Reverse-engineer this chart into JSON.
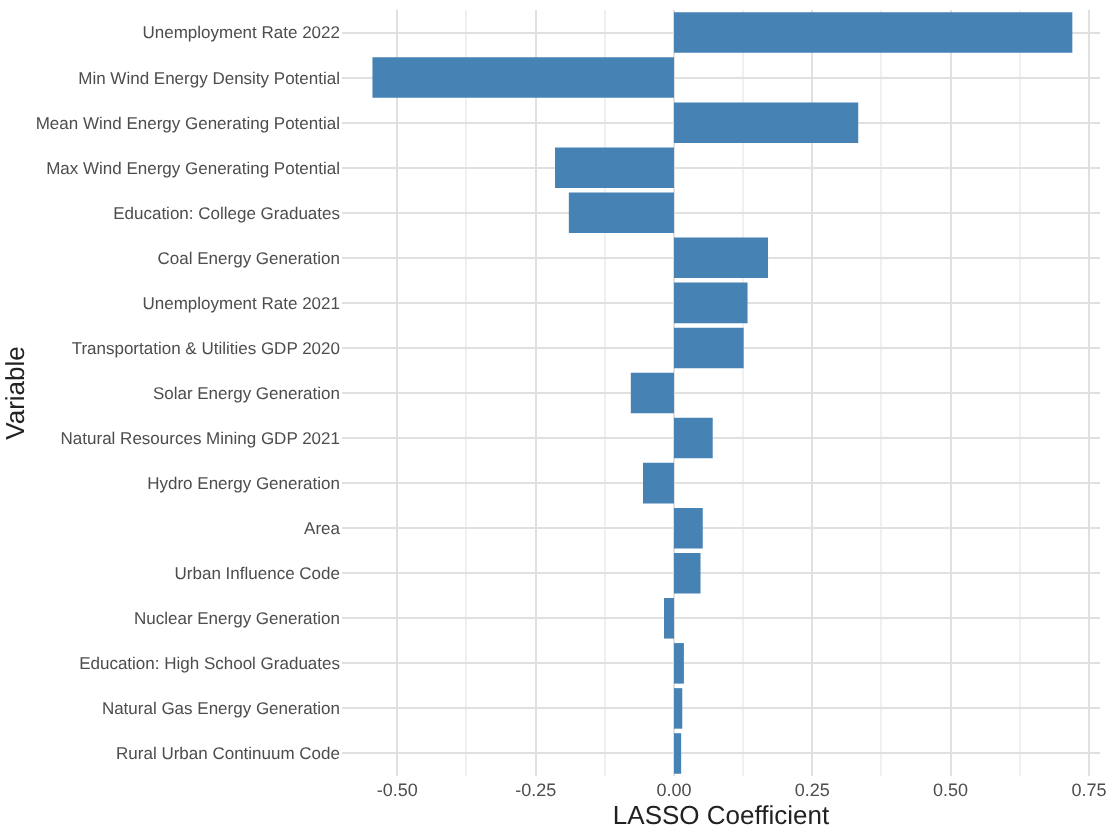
{
  "chart_data": {
    "type": "bar",
    "orientation": "horizontal",
    "xlabel": "LASSO Coefficient",
    "ylabel": "Variable",
    "categories": [
      "Unemployment Rate 2022",
      "Min Wind Energy Density Potential",
      "Mean Wind Energy Generating Potential",
      "Max Wind Energy Generating Potential",
      "Education: College Graduates",
      "Coal Energy Generation",
      "Unemployment Rate 2021",
      "Transportation & Utilities GDP 2020",
      "Solar Energy Generation",
      "Natural Resources Mining GDP 2021",
      "Hydro Energy Generation",
      "Area",
      "Urban Influence Code",
      "Nuclear Energy Generation",
      "Education: High School Graduates",
      "Natural Gas Energy Generation",
      "Rural Urban Continuum Code"
    ],
    "values": [
      0.72,
      -0.545,
      0.333,
      -0.215,
      -0.19,
      0.17,
      0.133,
      0.126,
      -0.078,
      0.07,
      -0.056,
      0.052,
      0.048,
      -0.018,
      0.018,
      0.015,
      0.013
    ],
    "color": "#4682b4",
    "xlim": [
      -0.6,
      0.77
    ],
    "xticks": [
      {
        "value": -0.5,
        "label": "-0.50"
      },
      {
        "value": -0.25,
        "label": "-0.25"
      },
      {
        "value": 0,
        "label": "0.00"
      },
      {
        "value": 0.25,
        "label": "0.25"
      },
      {
        "value": 0.5,
        "label": "0.50"
      },
      {
        "value": 0.75,
        "label": "0.75"
      }
    ],
    "grid": true
  }
}
